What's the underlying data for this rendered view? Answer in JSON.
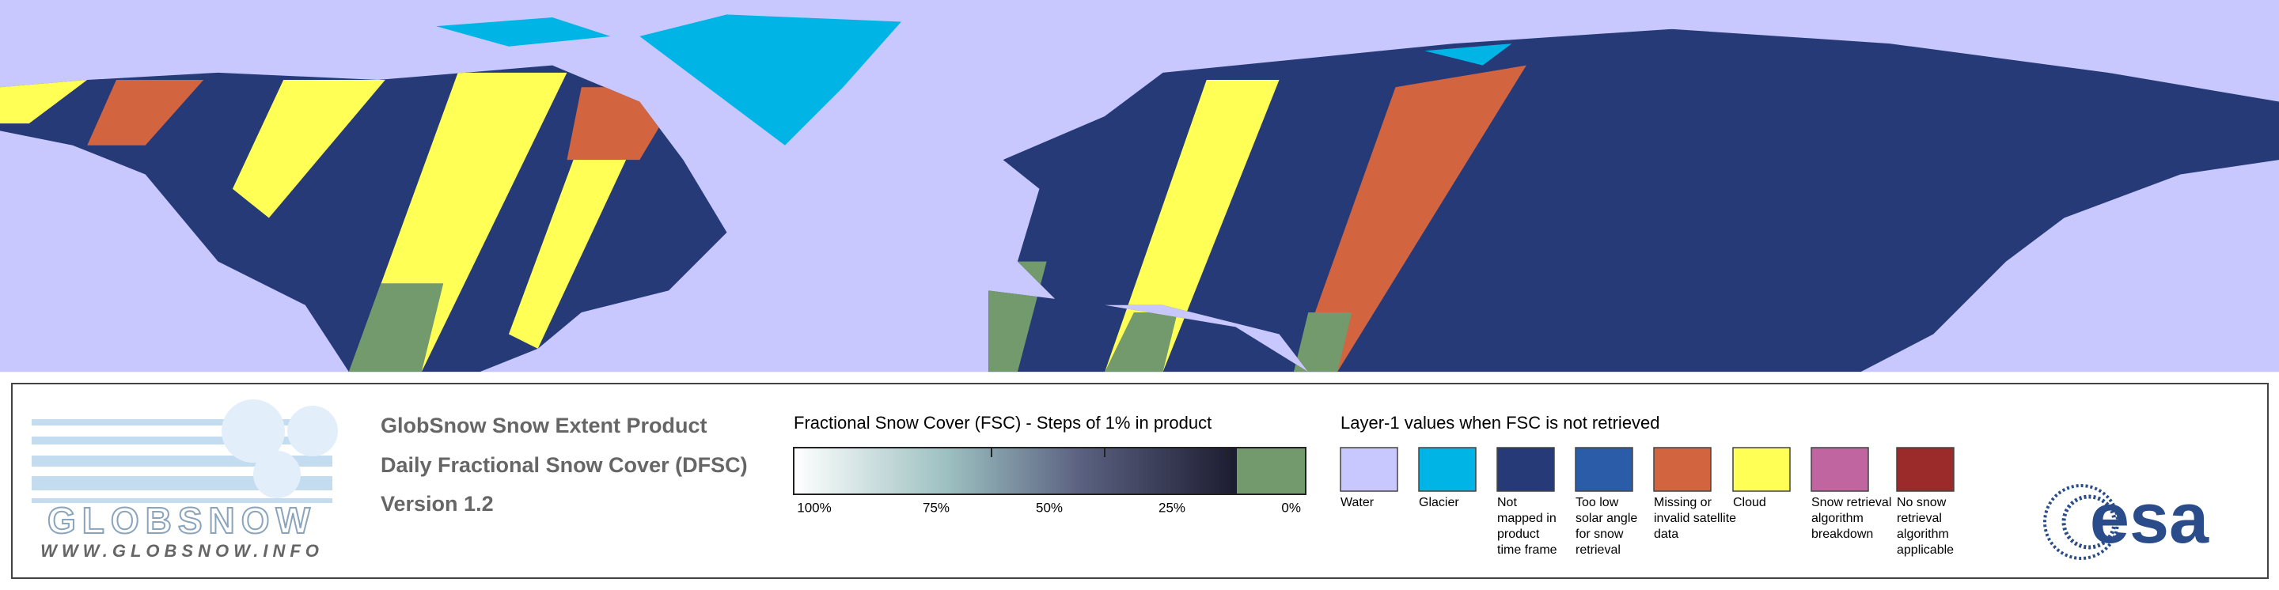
{
  "header": {
    "lines": [
      "GlobSnow Snow Extent Product",
      "Daily Fractional Snow Cover (DFSC)",
      "Version 1.2"
    ]
  },
  "logo": {
    "name": "GLOBSNOW",
    "url": "WWW.GLOBSNOW.INFO",
    "agency": "esa"
  },
  "colorbar": {
    "title": "Fractional Snow Cover (FSC) - Steps of 1% in product",
    "ticks": [
      "100%",
      "75%",
      "50%",
      "25%",
      "0%"
    ]
  },
  "layer": {
    "title": "Layer-1 values when FSC is not retrieved",
    "items": [
      {
        "lines": [
          "Water"
        ],
        "color": "#c8c8ff"
      },
      {
        "lines": [
          "Glacier"
        ],
        "color": "#00b4e6"
      },
      {
        "lines": [
          "Not",
          "mapped in",
          "product",
          "time frame"
        ],
        "color": "#263a78"
      },
      {
        "lines": [
          "Too low",
          "solar angle",
          "for snow",
          "retrieval"
        ],
        "color": "#2a5ca8"
      },
      {
        "lines": [
          "Missing or",
          "invalid satellite",
          "data"
        ],
        "color": "#d36440"
      },
      {
        "lines": [
          "Cloud"
        ],
        "color": "#ffff55"
      },
      {
        "lines": [
          "Snow retrieval",
          "algorithm",
          "breakdown"
        ],
        "color": "#c0659f"
      },
      {
        "lines": [
          "No snow",
          "retrieval",
          "algorithm",
          "applicable"
        ],
        "color": "#9b2a2a"
      }
    ]
  }
}
